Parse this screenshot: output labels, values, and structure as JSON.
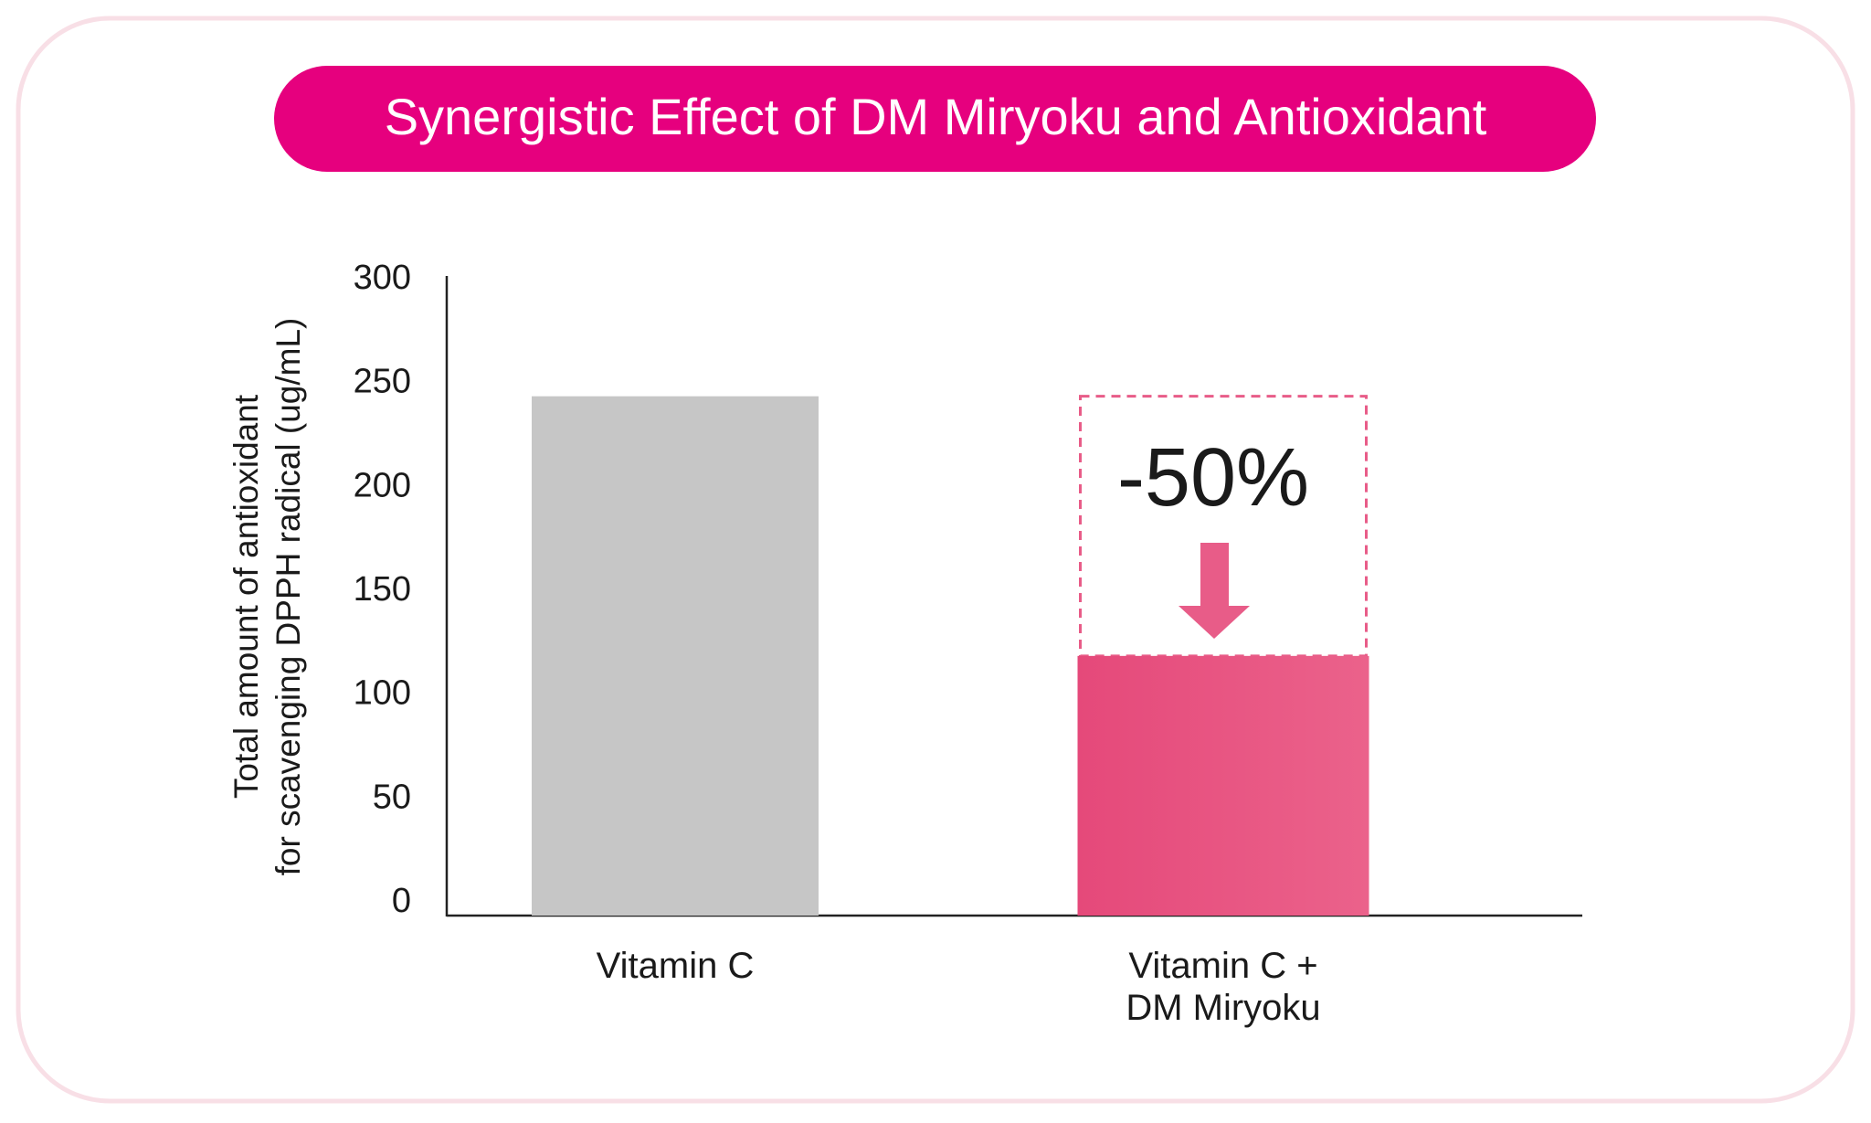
{
  "chart_data": {
    "type": "bar",
    "title": "Synergistic Effect of DM Miryoku and Antioxidant",
    "y_label": [
      "Total amount of antioxidant",
      "for scavenging DPPH radical (ug/mL)"
    ],
    "categories": [
      "Vitamin C",
      "Vitamin C +\nDM Miryoku"
    ],
    "values": [
      250,
      125
    ],
    "colors": [
      "#c6c6c6",
      "#e8507e"
    ],
    "annotation": "-50%",
    "ylim": [
      0,
      300
    ],
    "yticks": [
      0,
      50,
      100,
      150,
      200,
      250,
      300
    ],
    "grid": false
  }
}
